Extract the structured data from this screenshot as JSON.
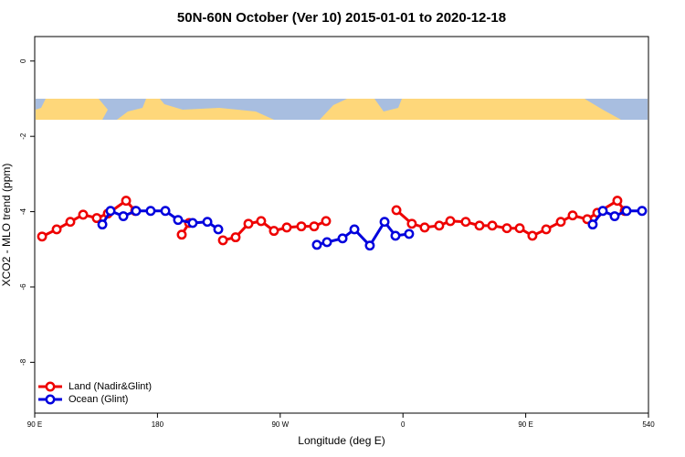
{
  "chart_data": {
    "type": "line",
    "title": "50N-60N October (Ver 10)   2015-01-01 to 2020-12-18",
    "x_label": "Longitude (deg E)",
    "y_label": "XCO2 - MLO trend (ppm)",
    "xlim": [
      90,
      540
    ],
    "xticks": [
      {
        "value": 90,
        "label": "90 E"
      },
      180,
      {
        "value": 270,
        "label": "90 W"
      },
      {
        "value": 360,
        "label": "0"
      },
      {
        "value": 450,
        "label": "90 E"
      },
      540
    ],
    "ylim": [
      -9.35,
      0.65
    ],
    "yticks": [
      0,
      -2,
      -4,
      -6,
      -8
    ],
    "legend": "lower left",
    "series": [
      {
        "name": "Land (Nadir&Glint)",
        "color": "#ee0000",
        "x": [
          95.4,
          106.1,
          116.1,
          125.5,
          135.5,
          143.6,
          157,
          163.7,
          null,
          197.8,
          203.2,
          null,
          228,
          237.3,
          246.7,
          256,
          265.4,
          274.8,
          285.5,
          294.9,
          303.6,
          null,
          355.2,
          366.5,
          375.9,
          386.6,
          394.7,
          406,
          416.1,
          425.5,
          436.2,
          445.6,
          454.9,
          465,
          475.7,
          484.4,
          495.1,
          502.5,
          517.2,
          522.6
        ],
        "values": [
          -4.66,
          -4.47,
          -4.27,
          -4.08,
          -4.17,
          -4.05,
          -3.71,
          -3.98,
          null,
          -4.61,
          -4.3,
          null,
          -4.76,
          -4.68,
          -4.32,
          -4.25,
          -4.51,
          -4.42,
          -4.39,
          -4.39,
          -4.25,
          null,
          -3.96,
          -4.32,
          -4.42,
          -4.37,
          -4.25,
          -4.27,
          -4.37,
          -4.37,
          -4.44,
          -4.44,
          -4.64,
          -4.47,
          -4.27,
          -4.1,
          -4.2,
          -4.03,
          -3.71,
          -3.98
        ]
      },
      {
        "name": "Ocean (Glint)",
        "color": "#0000dd",
        "x": [
          139.6,
          145.6,
          155,
          164.3,
          175,
          185.8,
          195.1,
          205.8,
          216.6,
          224.6,
          null,
          296.9,
          304.3,
          315.7,
          324.4,
          335.7,
          346.5,
          354.5,
          364.5,
          null,
          499.1,
          506.5,
          515.2,
          523.9,
          535.3
        ],
        "values": [
          -4.34,
          -3.98,
          -4.12,
          -3.98,
          -3.98,
          -3.98,
          -4.22,
          -4.3,
          -4.27,
          -4.47,
          null,
          -4.88,
          -4.81,
          -4.71,
          -4.47,
          -4.9,
          -4.27,
          -4.64,
          -4.59,
          null,
          -4.34,
          -3.98,
          -4.12,
          -3.98,
          -3.98
        ]
      }
    ]
  }
}
